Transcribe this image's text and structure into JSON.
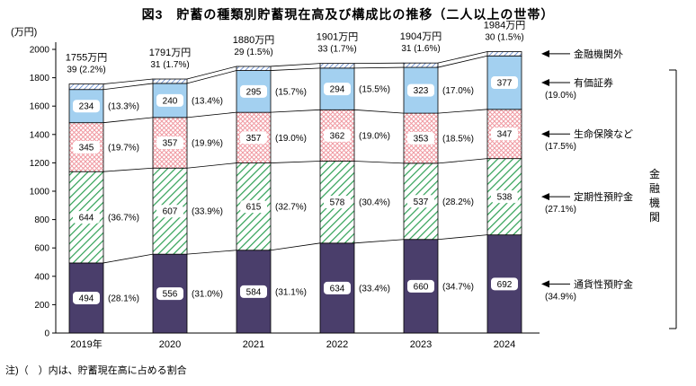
{
  "title": "図3　貯蓄の種類別貯蓄現在高及び構成比の推移（二人以上の世帯）",
  "y_axis_unit": "(万円)",
  "note": "注)（　）内は、貯蓄現在高に占める割合",
  "right_bracket_label": "金融機関",
  "chart_data": {
    "type": "bar",
    "stacked": true,
    "title": "図3　貯蓄の種類別貯蓄現在高及び構成比の推移（二人以上の世帯）",
    "categories": [
      "2019年",
      "2020",
      "2021",
      "2022",
      "2023",
      "2024"
    ],
    "totals_label": [
      "1755万円",
      "1791万円",
      "1880万円",
      "1901万円",
      "1904万円",
      "1984万円"
    ],
    "totals_value": [
      1755,
      1791,
      1880,
      1901,
      1904,
      1984
    ],
    "ylim": [
      0,
      2000
    ],
    "ytick_step": 200,
    "legend_position": "right",
    "grid": false,
    "colors": {
      "purple": "#4a3e6b",
      "light_blue": "#a3d0f0",
      "green_hatch": "#2fa055",
      "pink_hatch": "#f09aa2",
      "blue_hatch": "#4472c4"
    },
    "series": [
      {
        "name": "通貨性預貯金",
        "style": "solid-purple",
        "values": [
          494,
          556,
          584,
          634,
          660,
          692
        ],
        "pct": [
          "(28.1%)",
          "(31.0%)",
          "(31.1%)",
          "(33.4%)",
          "(34.7%)",
          "(34.9%)"
        ]
      },
      {
        "name": "定期性預貯金",
        "style": "green-hatch",
        "values": [
          644,
          607,
          615,
          578,
          537,
          538
        ],
        "pct": [
          "(36.7%)",
          "(33.9%)",
          "(32.7%)",
          "(30.4%)",
          "(28.2%)",
          "(27.1%)"
        ]
      },
      {
        "name": "生命保険など",
        "style": "pink-cross",
        "values": [
          345,
          357,
          357,
          362,
          353,
          347
        ],
        "pct": [
          "(19.7%)",
          "(19.9%)",
          "(19.0%)",
          "(19.0%)",
          "(18.5%)",
          "(17.5%)"
        ]
      },
      {
        "name": "有価証券",
        "style": "solid-blue",
        "values": [
          234,
          240,
          295,
          294,
          323,
          377
        ],
        "pct": [
          "(13.3%)",
          "(13.4%)",
          "(15.7%)",
          "(15.5%)",
          "(17.0%)",
          "(19.0%)"
        ]
      },
      {
        "name": "金融機関外",
        "style": "blue-hatch",
        "values": [
          39,
          31,
          29,
          33,
          31,
          30
        ],
        "pct": [
          "(2.2%)",
          "(1.7%)",
          "(1.5%)",
          "(1.7%)",
          "(1.6%)",
          "(1.5%)"
        ]
      }
    ]
  }
}
